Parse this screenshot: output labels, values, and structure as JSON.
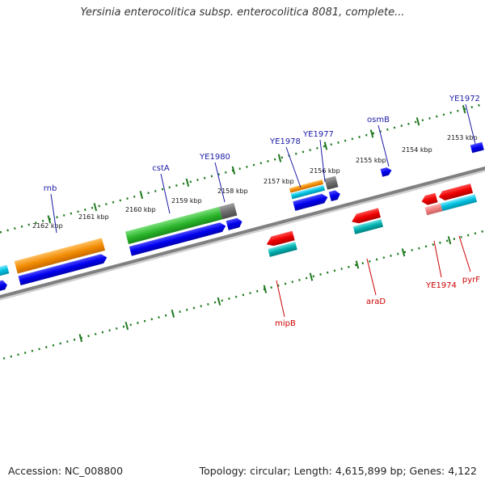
{
  "title": "Yersinia enterocolitica subsp. enterocolitica 8081, complete...",
  "footer": {
    "accession": "Accession: NC_008800",
    "stats": "Topology: circular; Length: 4,615,899 bp; Genes: 4,122"
  },
  "ticks": [
    "2162 kbp",
    "2161 kbp",
    "2160 kbp",
    "2159 kbp",
    "2158 kbp",
    "2157 kbp",
    "2156 kbp",
    "2155 kbp",
    "2154 kbp",
    "2153 kbp"
  ],
  "gene_labels": {
    "forward": [
      "rnb",
      "cstA",
      "YE1980",
      "YE1978",
      "YE1977",
      "osmB",
      "YE1972"
    ],
    "reverse": [
      "mipB",
      "araD",
      "YE1974",
      "pyrF"
    ]
  },
  "colors": {
    "backbone": "#808080",
    "tick_marks": "#1f7a1f",
    "forward_label": "#1a1aa6",
    "reverse_label": "#cc0000",
    "cds_blue": "#0000ee",
    "gene_orange": "#f08a00",
    "gene_green": "#2bb52b",
    "gene_red": "#ee0000",
    "gene_cyan": "#00b8d8",
    "gene_pink": "#f08080",
    "gene_gray": "#6e6e6e"
  }
}
